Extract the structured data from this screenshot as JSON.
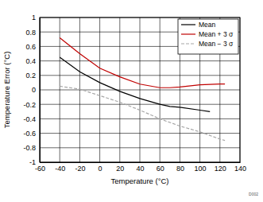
{
  "chart_data": {
    "type": "line",
    "x_label": "Temperature (°C)",
    "y_label": "Temperature Error (°C)",
    "annotations": [
      "D002"
    ],
    "xlim": [
      -60,
      140
    ],
    "xticks": [
      -60,
      -40,
      -20,
      0,
      20,
      40,
      60,
      80,
      100,
      120,
      140
    ],
    "ylim": [
      -1,
      1
    ],
    "yticks": [
      -1,
      -0.8,
      -0.6,
      -0.4,
      -0.2,
      0,
      0.2,
      0.4,
      0.6,
      0.8,
      1
    ],
    "grid": true,
    "legend": "upper right",
    "series": [
      {
        "name": "Mean",
        "color": "#000000",
        "line_style": "solid",
        "x": [
          -40,
          -20,
          0,
          20,
          40,
          60,
          70,
          80,
          100,
          110
        ],
        "values": [
          0.45,
          0.25,
          0.1,
          -0.02,
          -0.12,
          -0.2,
          -0.23,
          -0.24,
          -0.28,
          -0.3
        ]
      },
      {
        "name": "Mean + 3 σ",
        "color": "#c00000",
        "line_style": "solid",
        "x": [
          -40,
          -20,
          0,
          20,
          40,
          60,
          70,
          80,
          100,
          120,
          125
        ],
        "values": [
          0.72,
          0.5,
          0.3,
          0.18,
          0.08,
          0.03,
          0.03,
          0.04,
          0.07,
          0.08,
          0.08
        ]
      },
      {
        "name": "Mean − 3 σ",
        "color": "#a6a6a6",
        "line_style": "dashed",
        "x": [
          -40,
          -20,
          0,
          20,
          40,
          60,
          80,
          100,
          120,
          125
        ],
        "values": [
          0.05,
          0.01,
          -0.08,
          -0.17,
          -0.28,
          -0.4,
          -0.5,
          -0.58,
          -0.68,
          -0.7
        ]
      }
    ]
  }
}
